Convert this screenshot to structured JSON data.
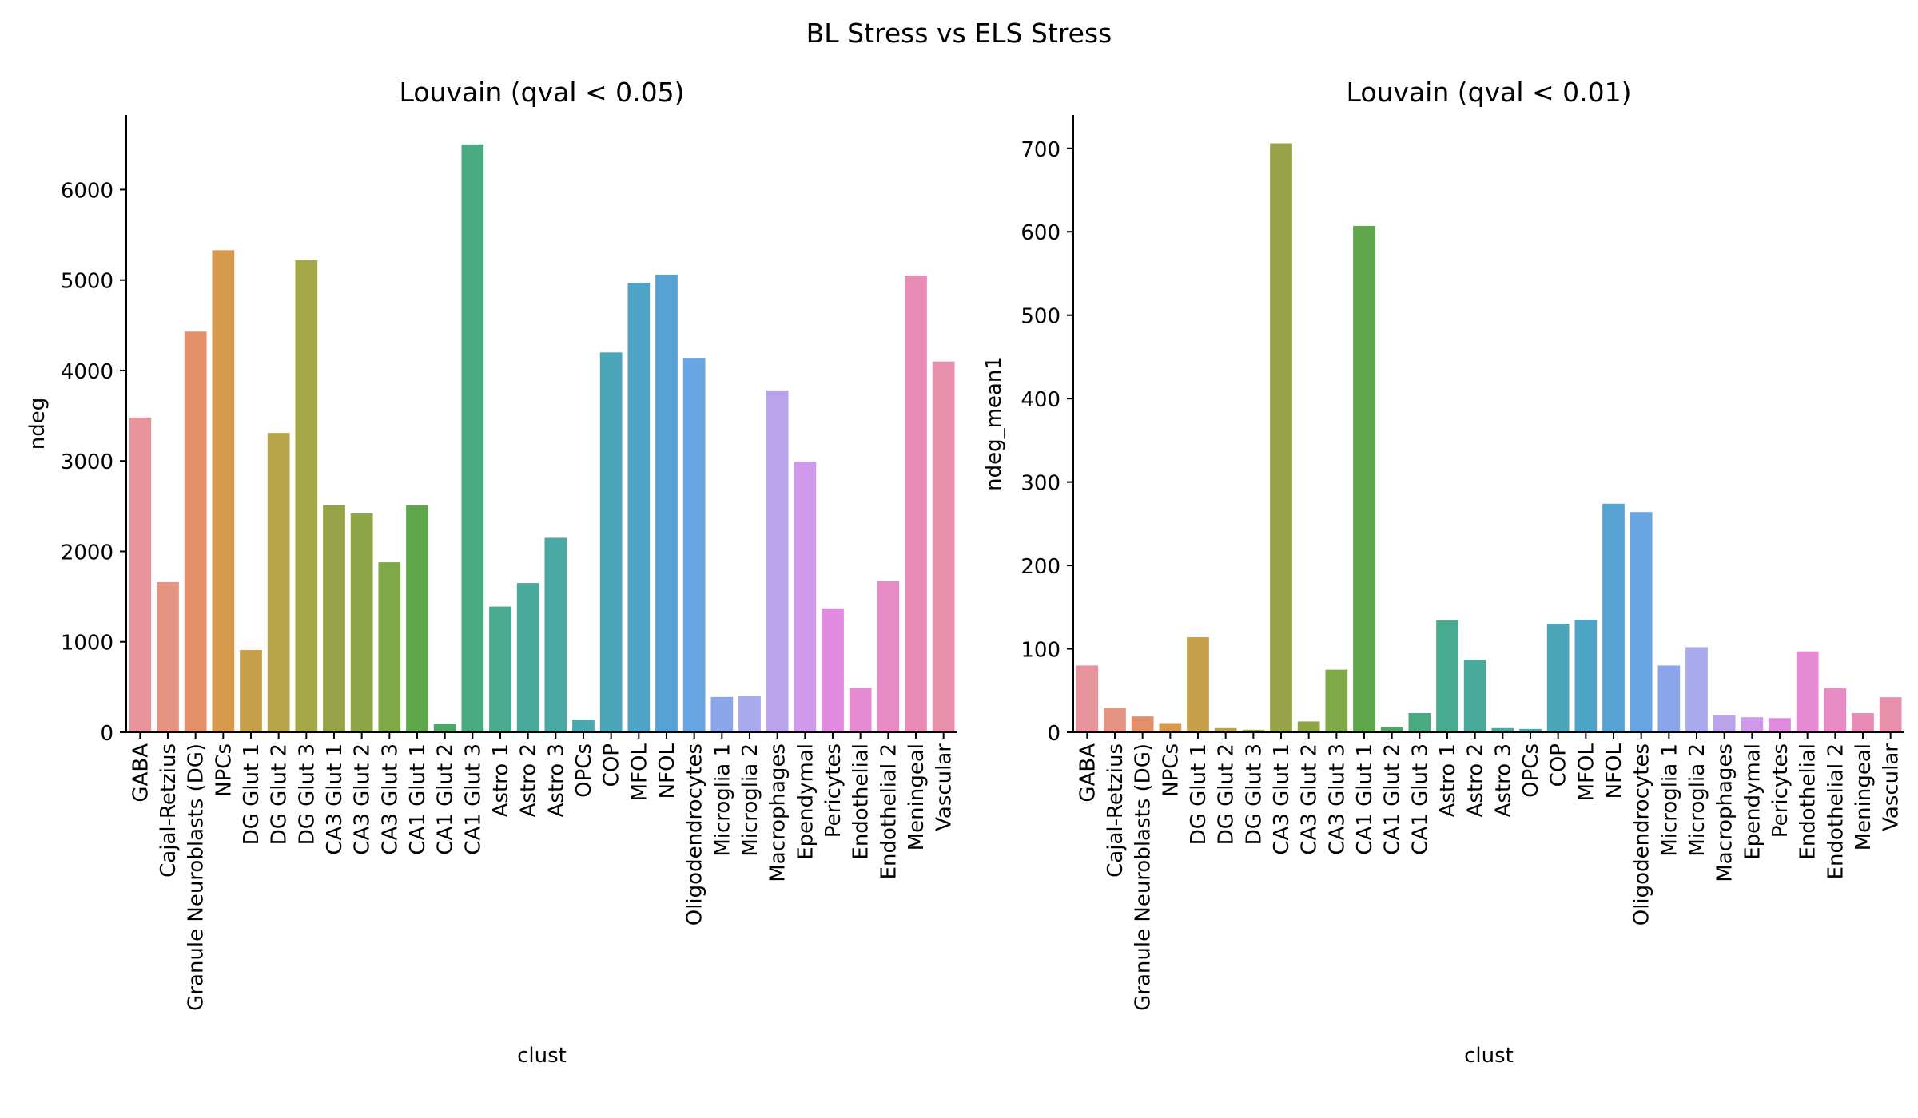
{
  "figure": {
    "title": "BL Stress vs ELS Stress"
  },
  "chart_data": [
    {
      "type": "bar",
      "title": "Louvain (qval < 0.05)",
      "xlabel": "clust",
      "ylabel": "ndeg",
      "ylim": [
        0,
        6825
      ],
      "yticks": [
        0,
        1000,
        2000,
        3000,
        4000,
        5000,
        6000
      ],
      "categories": [
        "GABA",
        "Cajal-Retzius",
        "Granule Neuroblasts (DG)",
        "NPCs",
        "DG Glut 1",
        "DG Glut 2",
        "DG Glut 3",
        "CA3 Glut 1",
        "CA3 Glut 2",
        "CA3 Glut 3",
        "CA1 Glut 1",
        "CA1 Glut 2",
        "CA1 Glut 3",
        "Astro 1",
        "Astro 2",
        "Astro 3",
        "OPCs",
        "COP",
        "MFOL",
        "NFOL",
        "Oligodendrocytes",
        "Microglia 1",
        "Microglia 2",
        "Macrophages",
        "Ependymal",
        "Pericytes",
        "Endothelial",
        "Endothelial 2",
        "Meningeal",
        "Vascular"
      ],
      "values": [
        3480,
        1660,
        4430,
        5330,
        910,
        3310,
        5220,
        2510,
        2420,
        1880,
        2510,
        90,
        6500,
        1390,
        1650,
        2150,
        140,
        4200,
        4970,
        5060,
        4140,
        390,
        400,
        3780,
        2990,
        1370,
        490,
        1670,
        5050,
        4100
      ],
      "grid": false,
      "legend": "none"
    },
    {
      "type": "bar",
      "title": "Louvain (qval < 0.01)",
      "xlabel": "clust",
      "ylabel": "ndeg_mean1",
      "ylim": [
        0,
        740
      ],
      "yticks": [
        0,
        100,
        200,
        300,
        400,
        500,
        600,
        700
      ],
      "categories": [
        "GABA",
        "Cajal-Retzius",
        "Granule Neuroblasts (DG)",
        "NPCs",
        "DG Glut 1",
        "DG Glut 2",
        "DG Glut 3",
        "CA3 Glut 1",
        "CA3 Glut 2",
        "CA3 Glut 3",
        "CA1 Glut 1",
        "CA1 Glut 2",
        "CA1 Glut 3",
        "Astro 1",
        "Astro 2",
        "Astro 3",
        "OPCs",
        "COP",
        "MFOL",
        "NFOL",
        "Oligodendrocytes",
        "Microglia 1",
        "Microglia 2",
        "Macrophages",
        "Ependymal",
        "Pericytes",
        "Endothelial",
        "Endothelial 2",
        "Meningeal",
        "Vascular"
      ],
      "values": [
        80,
        29,
        19,
        11,
        114,
        5,
        3,
        706,
        13,
        75,
        607,
        6,
        23,
        134,
        87,
        5,
        4,
        130,
        135,
        274,
        264,
        80,
        102,
        21,
        18,
        17,
        97,
        53,
        23,
        42
      ],
      "grid": false,
      "legend": "none"
    }
  ],
  "colors": {
    "bars": [
      "#e8949d",
      "#e69482",
      "#e28f6a",
      "#d69a4e",
      "#c6a04d",
      "#b7a44a",
      "#a5a749",
      "#97a346",
      "#8ea548",
      "#7fa849",
      "#5ea84b",
      "#4ea865",
      "#4aaa81",
      "#4aaa8f",
      "#4aa99b",
      "#4aa9a4",
      "#4aa8ae",
      "#4ba6ba",
      "#4da4c6",
      "#55a2d3",
      "#69a5e3",
      "#8aa5ea",
      "#a9aaed",
      "#bba3ec",
      "#cf98e8",
      "#e08ae0",
      "#e68ad1",
      "#e88ac5",
      "#e88cb7",
      "#e890ab"
    ],
    "axis": "#000000"
  }
}
